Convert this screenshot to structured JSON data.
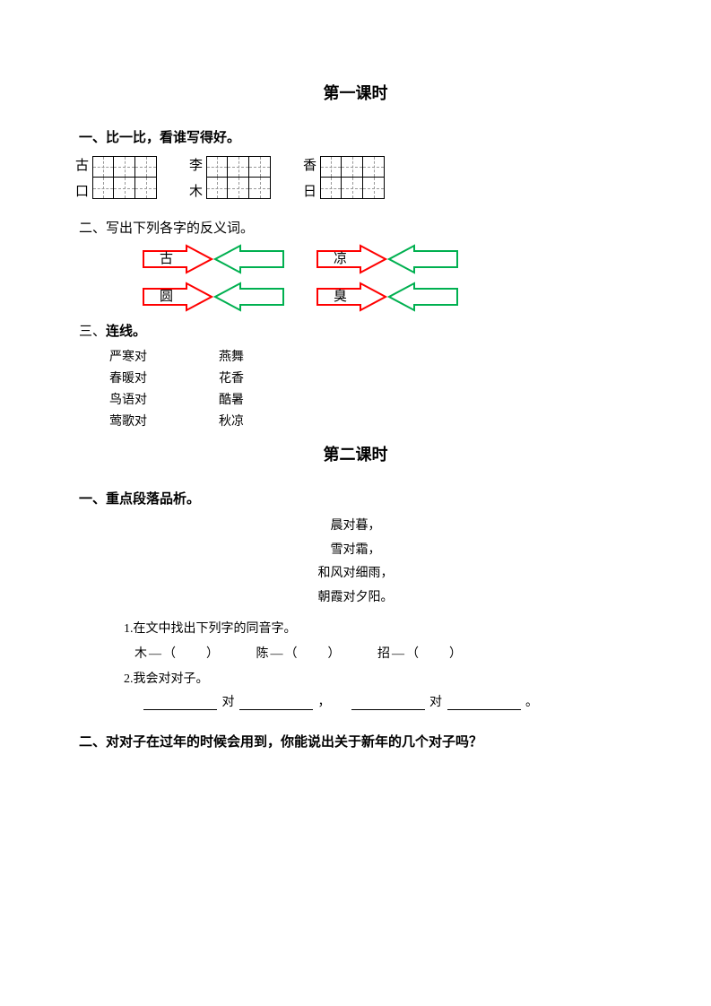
{
  "lesson1": {
    "title": "第一课时",
    "sec1": {
      "heading": "一、比一比，看谁写得好。",
      "pairs": [
        {
          "top": "古",
          "bottom": "口"
        },
        {
          "top": "李",
          "bottom": "木"
        },
        {
          "top": "香",
          "bottom": "日"
        }
      ],
      "grid_cells_per_row": 3,
      "grid_rows": 2
    },
    "sec2": {
      "heading": "二、写出下列各字的反义词。",
      "rows": [
        [
          "古",
          "凉"
        ],
        [
          "圆",
          "臭"
        ]
      ],
      "arrow_red": "#ff0000",
      "arrow_green": "#00b050"
    },
    "sec3": {
      "heading": "三、连线。",
      "left": [
        "严寒对",
        "春暖对",
        "鸟语对",
        "莺歌对"
      ],
      "right": [
        "燕舞",
        "花香",
        "酷暑",
        "秋凉"
      ]
    }
  },
  "lesson2": {
    "title": "第二课时",
    "sec1": {
      "heading": "一、重点段落品析。",
      "poem": [
        "晨对暮，",
        "雪对霜，",
        "和风对细雨，",
        "朝霞对夕阳。"
      ],
      "q1_label": "1.在文中找出下列字的同音字。",
      "q1_items": [
        "木—（　　）",
        "陈—（　　）",
        "招—（　　）"
      ],
      "q2_label": "2.我会对对子。",
      "q2_sep_dui": "对",
      "q2_comma": "，",
      "q2_period": "。"
    },
    "sec2": {
      "heading": "二、对对子在过年的时候会用到，你能说出关于新年的几个对子吗？"
    }
  }
}
